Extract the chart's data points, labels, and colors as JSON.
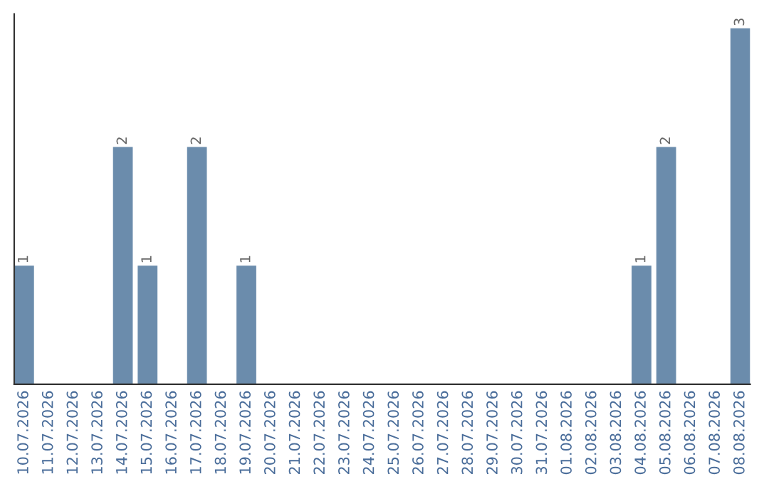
{
  "chart_data": {
    "type": "bar",
    "categories": [
      "10.07.2026",
      "11.07.2026",
      "12.07.2026",
      "13.07.2026",
      "14.07.2026",
      "15.07.2026",
      "16.07.2026",
      "17.07.2026",
      "18.07.2026",
      "19.07.2026",
      "20.07.2026",
      "21.07.2026",
      "22.07.2026",
      "23.07.2026",
      "24.07.2026",
      "25.07.2026",
      "26.07.2026",
      "27.07.2026",
      "28.07.2026",
      "29.07.2026",
      "30.07.2026",
      "31.07.2026",
      "01.08.2026",
      "02.08.2026",
      "03.08.2026",
      "04.08.2026",
      "05.08.2026",
      "06.08.2026",
      "07.08.2026",
      "08.08.2026"
    ],
    "values": [
      1,
      0,
      0,
      0,
      2,
      1,
      0,
      2,
      0,
      1,
      0,
      0,
      0,
      0,
      0,
      0,
      0,
      0,
      0,
      0,
      0,
      0,
      0,
      0,
      0,
      1,
      2,
      0,
      0,
      3
    ],
    "color": "#6b8cac",
    "value_labels": [
      "1",
      null,
      null,
      null,
      "2",
      "1",
      null,
      "2",
      null,
      "1",
      null,
      null,
      null,
      null,
      null,
      null,
      null,
      null,
      null,
      null,
      null,
      null,
      null,
      null,
      null,
      "1",
      "2",
      null,
      null,
      "3"
    ],
    "grid": false,
    "legend": false
  }
}
